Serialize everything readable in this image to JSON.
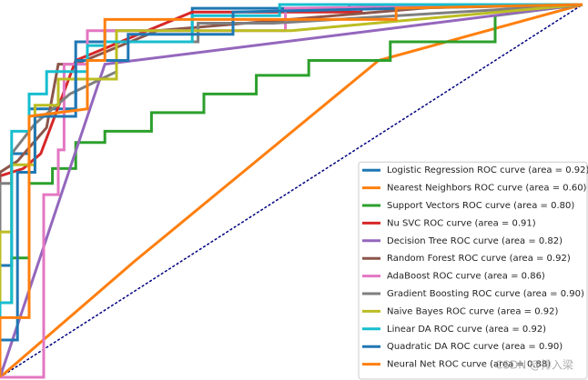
{
  "chart_data": {
    "type": "line",
    "xlim": [
      0,
      1
    ],
    "ylim": [
      0,
      1
    ],
    "legend": "lower right",
    "reference_line": {
      "x": [
        0,
        1
      ],
      "y": [
        0,
        1
      ],
      "color": "#000080"
    },
    "watermark": "CSDN @排入梁",
    "series": [
      {
        "name": "Logistic Regression ROC curve (area = 0.92)",
        "color": "#1f77b4",
        "x": [
          0,
          0,
          0.02,
          0.02,
          0.05,
          0.05,
          0.13,
          0.13,
          0.18,
          0.18,
          0.33,
          0.33,
          0.6,
          0.6,
          1
        ],
        "y": [
          0,
          0.3,
          0.3,
          0.6,
          0.6,
          0.72,
          0.72,
          0.9,
          0.9,
          0.93,
          0.93,
          0.99,
          0.99,
          1,
          1
        ]
      },
      {
        "name": "Nearest Neighbors ROC curve (area = 0.60)",
        "color": "#ff7f0e",
        "x": [
          0,
          0.23,
          0.65,
          1
        ],
        "y": [
          0,
          0.31,
          0.85,
          1
        ]
      },
      {
        "name": "Support Vectors ROC curve (area = 0.80)",
        "color": "#2ca02c",
        "x": [
          0,
          0,
          0.02,
          0.02,
          0.05,
          0.05,
          0.09,
          0.09,
          0.13,
          0.13,
          0.18,
          0.18,
          0.26,
          0.26,
          0.35,
          0.35,
          0.44,
          0.44,
          0.53,
          0.53,
          0.67,
          0.67,
          0.85,
          0.85,
          1
        ],
        "y": [
          0,
          0.2,
          0.2,
          0.32,
          0.32,
          0.52,
          0.52,
          0.56,
          0.56,
          0.63,
          0.63,
          0.66,
          0.66,
          0.71,
          0.71,
          0.76,
          0.76,
          0.81,
          0.81,
          0.85,
          0.85,
          0.9,
          0.9,
          0.97,
          1
        ]
      },
      {
        "name": "Nu SVC ROC curve (area = 0.91)",
        "color": "#d62728",
        "x": [
          0,
          0,
          0.04,
          0.07,
          0.13,
          0.33,
          0.62,
          0.62,
          1
        ],
        "y": [
          0,
          0.54,
          0.56,
          0.6,
          0.85,
          0.98,
          0.98,
          1,
          1
        ]
      },
      {
        "name": "Decision Tree ROC curve (area = 0.82)",
        "color": "#9467bd",
        "x": [
          0,
          0.18,
          1
        ],
        "y": [
          0,
          0.84,
          1
        ]
      },
      {
        "name": "Random Forest ROC curve (area = 0.92)",
        "color": "#8c564b",
        "x": [
          0,
          0,
          0.03,
          0.08,
          0.1,
          0.13,
          0.27,
          0.8,
          1
        ],
        "y": [
          0,
          0.55,
          0.58,
          0.67,
          0.84,
          0.84,
          0.93,
          1,
          1
        ]
      },
      {
        "name": "AdaBoost ROC curve (area = 0.86)",
        "color": "#e377c2",
        "x": [
          0,
          0.075,
          0.075,
          0.1,
          0.1,
          0.11,
          0.11,
          0.15,
          0.15,
          0.49,
          0.49,
          1
        ],
        "y": [
          0,
          0,
          0.49,
          0.49,
          0.61,
          0.61,
          0.84,
          0.84,
          0.93,
          0.93,
          0.99,
          1
        ]
      },
      {
        "name": "Gradient Boosting ROC curve (area = 0.90)",
        "color": "#7f7f7f",
        "x": [
          0,
          0,
          0.02,
          0.02,
          0.06,
          0.12,
          0.2,
          0.2,
          0.34,
          0.34,
          0.47,
          1
        ],
        "y": [
          0,
          0.52,
          0.52,
          0.6,
          0.68,
          0.76,
          0.82,
          0.9,
          0.9,
          0.95,
          0.95,
          1
        ]
      },
      {
        "name": "Naive Bayes ROC curve (area = 0.92)",
        "color": "#bcbd22",
        "x": [
          0,
          0,
          0.02,
          0.02,
          0.06,
          0.06,
          0.1,
          0.1,
          0.2,
          0.2,
          0.5,
          1
        ],
        "y": [
          0,
          0.39,
          0.39,
          0.57,
          0.57,
          0.73,
          0.73,
          0.8,
          0.8,
          0.93,
          0.93,
          1
        ]
      },
      {
        "name": "Linear DA ROC curve (area = 0.92)",
        "color": "#17becf",
        "x": [
          0,
          0,
          0.02,
          0.02,
          0.05,
          0.05,
          0.08,
          0.08,
          0.15,
          0.15,
          0.18,
          0.18,
          0.33,
          0.33,
          0.48,
          0.48,
          1
        ],
        "y": [
          0,
          0.2,
          0.2,
          0.66,
          0.66,
          0.76,
          0.76,
          0.82,
          0.82,
          0.89,
          0.89,
          0.9,
          0.9,
          0.97,
          0.97,
          1,
          1
        ]
      },
      {
        "name": "Quadratic DA ROC curve (area = 0.90)",
        "color": "#1f77b4",
        "x": [
          0,
          0,
          0.03,
          0.03,
          0.06,
          0.06,
          0.13,
          0.13,
          0.22,
          0.22,
          0.4,
          0.4,
          1
        ],
        "y": [
          0,
          0.1,
          0.1,
          0.55,
          0.55,
          0.7,
          0.7,
          0.85,
          0.85,
          0.92,
          0.92,
          0.98,
          1
        ]
      },
      {
        "name": "Neural Net ROC curve (area = 0.88)",
        "color": "#ff7f0e",
        "x": [
          0,
          0,
          0.05,
          0.05,
          0.15,
          0.15,
          0.18,
          0.18,
          0.68,
          0.68,
          1
        ],
        "y": [
          0,
          0.16,
          0.16,
          0.7,
          0.72,
          0.85,
          0.85,
          0.96,
          0.96,
          0.99,
          1
        ]
      }
    ]
  }
}
